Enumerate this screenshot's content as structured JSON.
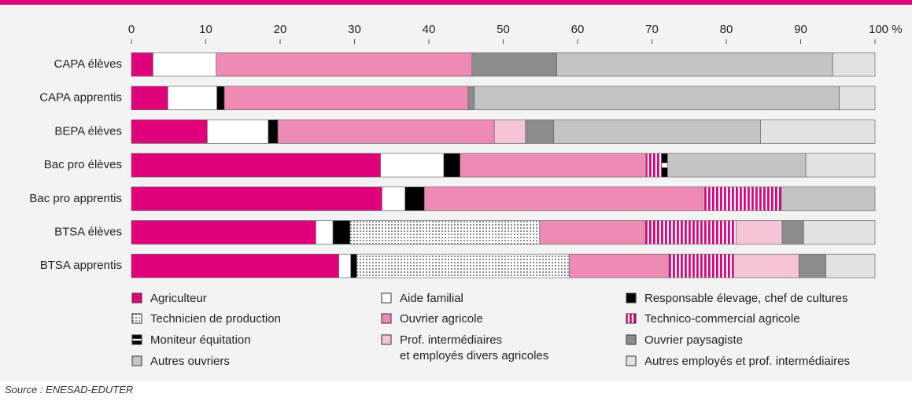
{
  "chart_data": {
    "type": "stacked-bar-horizontal",
    "categories": [
      "CAPA élèves",
      "CAPA apprentis",
      "BEPA élèves",
      "Bac pro élèves",
      "Bac pro apprentis",
      "BTSA élèves",
      "BTSA  apprentis"
    ],
    "xlim": [
      0,
      100
    ],
    "xticks": [
      0,
      10,
      20,
      30,
      40,
      50,
      60,
      70,
      80,
      90,
      {
        "value": 100,
        "label": "100 %"
      }
    ],
    "series": [
      {
        "name": "Agriculteur",
        "color": "#e0007a",
        "values": [
          2.9,
          4.9,
          10.2,
          33.5,
          33.7,
          24.8,
          27.9
        ]
      },
      {
        "name": "Aide familial",
        "color": "#ffffff",
        "values": [
          8.5,
          6.6,
          8.2,
          8.5,
          3.1,
          2.3,
          1.6
        ]
      },
      {
        "name": "Responsable élevage, chef de cultures",
        "color": "#000000",
        "values": [
          0,
          1.0,
          1.3,
          2.2,
          2.6,
          2.3,
          0.8
        ]
      },
      {
        "name": "Technicien de production",
        "color": "#ffffff",
        "pattern": "dots",
        "values": [
          0,
          0,
          0,
          0,
          0,
          25.5,
          28.6
        ]
      },
      {
        "name": "Ouvrier agricole",
        "color": "#ee8ab4",
        "values": [
          34.4,
          32.8,
          29.1,
          25.0,
          37.5,
          14.1,
          13.3
        ]
      },
      {
        "name": "Technico-commercial agricole",
        "color": "#e0007a",
        "pattern": "vstripes",
        "values": [
          0,
          0,
          0,
          2.1,
          10.5,
          12.3,
          8.8
        ]
      },
      {
        "name": "Moniteur équitation",
        "color": "#000000",
        "pattern": "hstripe",
        "values": [
          0,
          0,
          0,
          0.8,
          0,
          0,
          0
        ]
      },
      {
        "name": "Prof. intermédiaires\net employés divers agricoles",
        "color": "#f6c4d8",
        "values": [
          0,
          0,
          4.2,
          0,
          0,
          6.2,
          8.8
        ]
      },
      {
        "name": "Ouvrier paysagiste",
        "color": "#8c8c8c",
        "values": [
          11.4,
          0.8,
          3.8,
          0,
          0,
          2.9,
          3.6
        ]
      },
      {
        "name": "Autres ouvriers",
        "color": "#c4c4c4",
        "values": [
          37.1,
          49.1,
          27.8,
          18.6,
          12.6,
          0,
          0
        ]
      },
      {
        "name": "Autres employés et prof. intermédiaires",
        "color": "#e2e2e2",
        "values": [
          5.7,
          4.8,
          15.4,
          9.3,
          0,
          9.6,
          6.6
        ]
      }
    ],
    "source": "Source : ENESAD-EDUTER"
  }
}
